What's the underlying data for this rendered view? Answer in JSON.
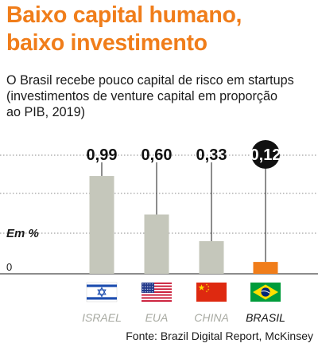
{
  "title_line1": "Baixo capital humano,",
  "title_line2": "baixo investimento",
  "subtitle_line1": "O Brasil recebe pouco capital de risco em startups",
  "subtitle_line2": "(investimentos de venture capital em proporção",
  "subtitle_line3": "ao PIB, 2019)",
  "source": "Fonte: Brazil Digital Report, McKinsey",
  "colors": {
    "title": "#f07d1a",
    "bar_default": "#c5c7bb",
    "bar_highlight": "#f07d1a",
    "highlight_badge": "#111111"
  },
  "chart_data": {
    "type": "bar",
    "ylabel": "Em %",
    "y_tick_labels": [
      "0"
    ],
    "ylim": [
      0,
      1.2
    ],
    "grid": true,
    "categories": [
      "ISRAEL",
      "EUA",
      "CHINA",
      "BRASIL"
    ],
    "value_labels": [
      "0,99",
      "0,60",
      "0,33",
      "0,12"
    ],
    "values": [
      0.99,
      0.6,
      0.33,
      0.12
    ],
    "highlight_index": 3,
    "flags": [
      "israel-flag",
      "usa-flag",
      "china-flag",
      "brazil-flag"
    ]
  }
}
